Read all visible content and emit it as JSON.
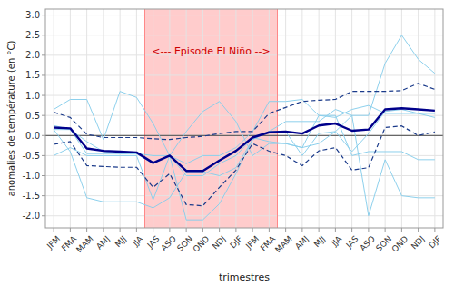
{
  "chart_data": {
    "type": "line",
    "xlabel": "trimestres",
    "ylabel": "anomalies de température (en °C)",
    "categories": [
      "JFM",
      "FMA",
      "MAM",
      "AMJ",
      "MJJ",
      "JJA",
      "JAS",
      "ASO",
      "SON",
      "OND",
      "NDJ",
      "DJF",
      "JFM",
      "FMA",
      "MAM",
      "AMJ",
      "MJJ",
      "JJA",
      "JAS",
      "ASO",
      "SON",
      "OND",
      "NDJ",
      "DJF"
    ],
    "series": [
      {
        "color": "#87CEEB",
        "values": [
          0.65,
          0.9,
          0.9,
          -0.1,
          1.1,
          0.95,
          0.3,
          -0.5,
          0.1,
          0.6,
          0.85,
          0.35,
          -0.5,
          -0.2,
          -0.2,
          -0.3,
          -0.2,
          0.1,
          0.5,
          0.5,
          1.8,
          2.5,
          1.9,
          1.55
        ]
      },
      {
        "color": "#87CEEB",
        "values": [
          -0.5,
          -0.3,
          -0.5,
          -0.5,
          -0.5,
          -0.5,
          -1.6,
          -0.5,
          -0.7,
          -0.5,
          -0.5,
          -0.3,
          0.1,
          0.85,
          0.85,
          0.9,
          0.5,
          0.5,
          -0.5,
          -0.4,
          -0.4,
          -0.4,
          -0.6,
          -0.6
        ]
      },
      {
        "color": "#87CEEB",
        "values": [
          0.25,
          0.15,
          -0.15,
          -0.4,
          -0.45,
          -0.45,
          -0.5,
          -0.5,
          -1.0,
          -1.0,
          -0.7,
          -0.5,
          -0.05,
          -0.15,
          -0.2,
          -0.3,
          0.5,
          0.45,
          0.65,
          0.75,
          0.55,
          0.55,
          0.55,
          0.55
        ]
      },
      {
        "color": "#87CEEB",
        "values": [
          0.15,
          0.15,
          -0.45,
          -0.45,
          -0.45,
          -0.45,
          -0.7,
          -0.5,
          -2.1,
          -2.1,
          -1.7,
          -0.95,
          -0.1,
          0.1,
          0.1,
          -0.5,
          0.05,
          0.1,
          -0.4,
          0.05,
          0.6,
          0.65,
          0.55,
          0.45
        ]
      },
      {
        "color": "#87CEEB",
        "values": [
          0.15,
          -0.4,
          -1.55,
          -1.65,
          -1.65,
          -1.65,
          -1.8,
          -1.55,
          -0.9,
          -0.9,
          -1.0,
          -0.8,
          -0.1,
          0.1,
          0.35,
          0.35,
          0.35,
          0.65,
          0.5,
          -2.0,
          -0.6,
          -1.5,
          -1.55,
          -1.55
        ]
      },
      {
        "color": "#1a3a8a",
        "line_style": "dashed",
        "values": [
          0.58,
          0.45,
          0.03,
          -0.05,
          -0.05,
          -0.05,
          -0.08,
          -0.1,
          -0.05,
          -0.02,
          0.05,
          0.1,
          0.1,
          0.55,
          0.7,
          0.85,
          0.88,
          0.9,
          1.1,
          1.1,
          1.1,
          1.12,
          1.3,
          1.15
        ]
      },
      {
        "color": "#1a3a8a",
        "line_style": "dashed",
        "values": [
          -0.22,
          -0.15,
          -0.75,
          -0.77,
          -0.79,
          -0.79,
          -1.29,
          -0.95,
          -1.72,
          -1.75,
          -1.29,
          -0.86,
          -0.2,
          -0.39,
          -0.5,
          -0.75,
          -0.38,
          -0.3,
          -0.86,
          -0.8,
          0.2,
          0.24,
          0.0,
          0.09
        ]
      },
      {
        "color": "#00008B",
        "line_style": "solid",
        "values": [
          0.2,
          0.18,
          -0.32,
          -0.38,
          -0.4,
          -0.42,
          -0.68,
          -0.5,
          -0.88,
          -0.88,
          -0.62,
          -0.38,
          -0.05,
          0.08,
          0.1,
          0.05,
          0.25,
          0.3,
          0.12,
          0.15,
          0.65,
          0.68,
          0.65,
          0.62
        ]
      }
    ],
    "highlight": {
      "start": 6,
      "end": 14,
      "color": "#ffcccc",
      "edge_color": "#ff8888",
      "label": "<--- Episode El Niño -->",
      "label_y": 2.1,
      "label_color": "#cc0000"
    },
    "hlines": [
      {
        "y": 0,
        "color": "#444444"
      }
    ],
    "ylim": [
      -2.3,
      3.15
    ],
    "yticks": [
      {
        "value": -2.0,
        "label": "-2.0"
      },
      -1.5,
      {
        "value": -1.0,
        "label": "-1.0"
      },
      -0.5,
      {
        "value": 0.0,
        "label": "0.0"
      },
      0.5,
      {
        "value": 1.0,
        "label": "1.0"
      },
      1.5,
      {
        "value": 2.0,
        "label": "2.0"
      },
      2.5,
      {
        "value": 3.0,
        "label": "3.0"
      }
    ],
    "grid": true
  }
}
